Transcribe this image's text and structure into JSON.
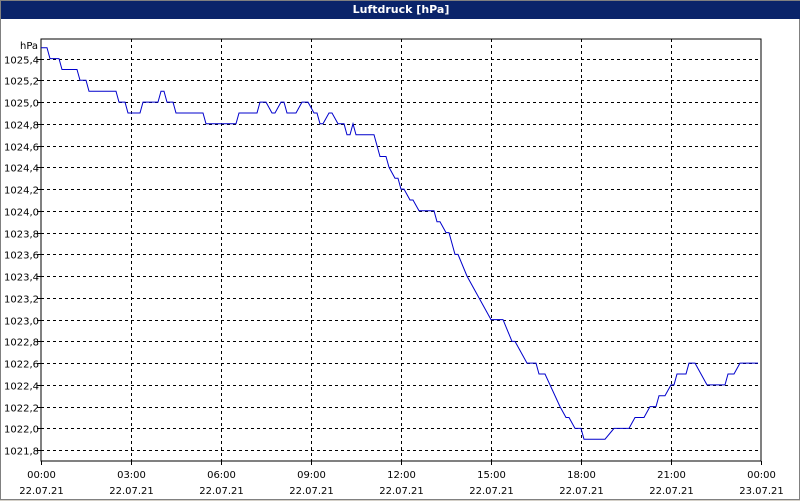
{
  "window": {
    "title": "Luftdruck [hPa]"
  },
  "chart_data": {
    "type": "line",
    "title": "Luftdruck [hPa]",
    "ylabel": "hPa",
    "xlabel": "",
    "ylim": [
      1021.7,
      1025.58
    ],
    "xlim_hours": [
      0,
      24
    ],
    "y_ticks": [
      1021.8,
      1022.0,
      1022.2,
      1022.4,
      1022.6,
      1022.8,
      1023.0,
      1023.2,
      1023.4,
      1023.6,
      1023.8,
      1024.0,
      1024.2,
      1024.4,
      1024.6,
      1024.8,
      1025.0,
      1025.2,
      1025.4
    ],
    "y_tick_labels": [
      "1021,8",
      "1022,0",
      "1022,2",
      "1022,4",
      "1022,6",
      "1022,8",
      "1023,0",
      "1023,2",
      "1023,4",
      "1023,6",
      "1023,8",
      "1024,0",
      "1024,2",
      "1024,4",
      "1024,6",
      "1024,8",
      "1025,0",
      "1025,2",
      "1025,4"
    ],
    "x_ticks": [
      {
        "hour": 0,
        "time": "00:00",
        "date": "22.07.21"
      },
      {
        "hour": 3,
        "time": "03:00",
        "date": "22.07.21"
      },
      {
        "hour": 6,
        "time": "06:00",
        "date": "22.07.21"
      },
      {
        "hour": 9,
        "time": "09:00",
        "date": "22.07.21"
      },
      {
        "hour": 12,
        "time": "12:00",
        "date": "22.07.21"
      },
      {
        "hour": 15,
        "time": "15:00",
        "date": "22.07.21"
      },
      {
        "hour": 18,
        "time": "18:00",
        "date": "22.07.21"
      },
      {
        "hour": 21,
        "time": "21:00",
        "date": "22.07.21"
      },
      {
        "hour": 24,
        "time": "00:00",
        "date": "23.07.21"
      }
    ],
    "grid": true,
    "line_color": "#0000cc",
    "series": [
      {
        "points": [
          [
            0.0,
            1025.5
          ],
          [
            0.2,
            1025.5
          ],
          [
            0.3,
            1025.4
          ],
          [
            0.6,
            1025.4
          ],
          [
            0.7,
            1025.3
          ],
          [
            1.2,
            1025.3
          ],
          [
            1.3,
            1025.2
          ],
          [
            1.5,
            1025.2
          ],
          [
            1.6,
            1025.1
          ],
          [
            2.5,
            1025.1
          ],
          [
            2.6,
            1025.0
          ],
          [
            2.8,
            1025.0
          ],
          [
            2.9,
            1024.9
          ],
          [
            3.3,
            1024.9
          ],
          [
            3.4,
            1025.0
          ],
          [
            3.9,
            1025.0
          ],
          [
            4.0,
            1025.1
          ],
          [
            4.1,
            1025.1
          ],
          [
            4.2,
            1025.0
          ],
          [
            4.4,
            1025.0
          ],
          [
            4.5,
            1024.9
          ],
          [
            5.4,
            1024.9
          ],
          [
            5.5,
            1024.8
          ],
          [
            6.5,
            1024.8
          ],
          [
            6.6,
            1024.9
          ],
          [
            7.2,
            1024.9
          ],
          [
            7.3,
            1025.0
          ],
          [
            7.5,
            1025.0
          ],
          [
            7.7,
            1024.9
          ],
          [
            7.8,
            1024.9
          ],
          [
            8.0,
            1025.0
          ],
          [
            8.1,
            1025.0
          ],
          [
            8.2,
            1024.9
          ],
          [
            8.5,
            1024.9
          ],
          [
            8.7,
            1025.0
          ],
          [
            8.9,
            1025.0
          ],
          [
            9.1,
            1024.9
          ],
          [
            9.2,
            1024.9
          ],
          [
            9.3,
            1024.8
          ],
          [
            9.4,
            1024.8
          ],
          [
            9.6,
            1024.9
          ],
          [
            9.7,
            1024.9
          ],
          [
            9.9,
            1024.8
          ],
          [
            10.1,
            1024.8
          ],
          [
            10.2,
            1024.7
          ],
          [
            10.3,
            1024.7
          ],
          [
            10.4,
            1024.8
          ],
          [
            10.5,
            1024.7
          ],
          [
            11.1,
            1024.7
          ],
          [
            11.3,
            1024.5
          ],
          [
            11.5,
            1024.5
          ],
          [
            11.6,
            1024.4
          ],
          [
            11.8,
            1024.3
          ],
          [
            11.9,
            1024.3
          ],
          [
            12.0,
            1024.2
          ],
          [
            12.1,
            1024.2
          ],
          [
            12.3,
            1024.1
          ],
          [
            12.4,
            1024.1
          ],
          [
            12.6,
            1024.0
          ],
          [
            13.1,
            1024.0
          ],
          [
            13.2,
            1023.9
          ],
          [
            13.3,
            1023.9
          ],
          [
            13.5,
            1023.8
          ],
          [
            13.6,
            1023.8
          ],
          [
            13.8,
            1023.6
          ],
          [
            13.9,
            1023.6
          ],
          [
            14.2,
            1023.4
          ],
          [
            14.8,
            1023.1
          ],
          [
            15.0,
            1023.0
          ],
          [
            15.4,
            1023.0
          ],
          [
            15.7,
            1022.8
          ],
          [
            15.8,
            1022.8
          ],
          [
            16.2,
            1022.6
          ],
          [
            16.5,
            1022.6
          ],
          [
            16.6,
            1022.5
          ],
          [
            16.8,
            1022.5
          ],
          [
            17.3,
            1022.2
          ],
          [
            17.5,
            1022.1
          ],
          [
            17.6,
            1022.1
          ],
          [
            17.8,
            1022.0
          ],
          [
            18.0,
            1022.0
          ],
          [
            18.1,
            1021.9
          ],
          [
            18.8,
            1021.9
          ],
          [
            19.1,
            1022.0
          ],
          [
            19.6,
            1022.0
          ],
          [
            19.8,
            1022.1
          ],
          [
            20.1,
            1022.1
          ],
          [
            20.3,
            1022.2
          ],
          [
            20.5,
            1022.2
          ],
          [
            20.6,
            1022.3
          ],
          [
            20.8,
            1022.3
          ],
          [
            21.0,
            1022.4
          ],
          [
            21.1,
            1022.4
          ],
          [
            21.2,
            1022.5
          ],
          [
            21.5,
            1022.5
          ],
          [
            21.6,
            1022.6
          ],
          [
            21.8,
            1022.6
          ],
          [
            22.0,
            1022.5
          ],
          [
            22.2,
            1022.4
          ],
          [
            22.8,
            1022.4
          ],
          [
            22.9,
            1022.5
          ],
          [
            23.1,
            1022.5
          ],
          [
            23.3,
            1022.6
          ],
          [
            23.9,
            1022.6
          ]
        ]
      }
    ]
  }
}
